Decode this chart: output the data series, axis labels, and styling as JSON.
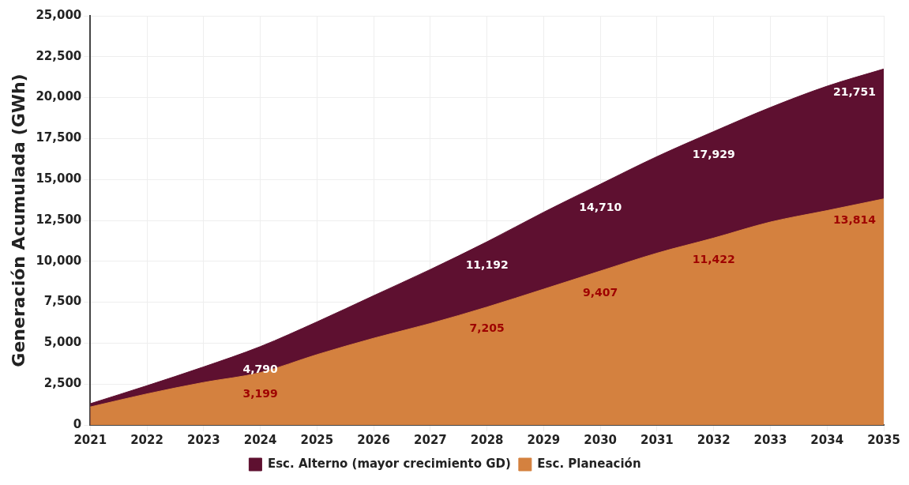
{
  "chart_data": {
    "type": "area",
    "ylabel": "Generación Acumulada (GWh)",
    "categories": [
      "2021",
      "2022",
      "2023",
      "2024",
      "2025",
      "2026",
      "2027",
      "2028",
      "2029",
      "2030",
      "2031",
      "2032",
      "2033",
      "2034",
      "2035"
    ],
    "series": [
      {
        "name": "Esc. Alterno (mayor crecimiento GD)",
        "color": "#5e1030",
        "values": [
          1300,
          2400,
          3550,
          4790,
          6300,
          7900,
          9500,
          11192,
          13000,
          14710,
          16400,
          17929,
          19400,
          20700,
          21751
        ],
        "value_labels": [
          null,
          null,
          null,
          "4,790",
          null,
          null,
          null,
          "11,192",
          null,
          "14,710",
          null,
          "17,929",
          null,
          null,
          "21,751"
        ]
      },
      {
        "name": "Esc. Planeación",
        "color": "#d4813f",
        "values": [
          1100,
          1900,
          2600,
          3199,
          4300,
          5300,
          6200,
          7205,
          8300,
          9407,
          10500,
          11422,
          12400,
          13100,
          13814
        ],
        "value_labels": [
          null,
          null,
          null,
          "3,199",
          null,
          null,
          null,
          "7,205",
          null,
          "9,407",
          null,
          "11,422",
          null,
          null,
          "13,814"
        ]
      }
    ],
    "ylim": [
      0,
      25000
    ],
    "yticks": [
      {
        "value": 0,
        "label": "0"
      },
      {
        "value": 2500,
        "label": "2,500"
      },
      {
        "value": 5000,
        "label": "5,000"
      },
      {
        "value": 7500,
        "label": "7,500"
      },
      {
        "value": 10000,
        "label": "10,000"
      },
      {
        "value": 12500,
        "label": "12,500"
      },
      {
        "value": 15000,
        "label": "15,000"
      },
      {
        "value": 17500,
        "label": "17,500"
      },
      {
        "value": 20000,
        "label": "20,000"
      },
      {
        "value": 22500,
        "label": "22,500"
      },
      {
        "value": 25000,
        "label": "25,000"
      }
    ],
    "grid": true,
    "legend": "bottom"
  }
}
